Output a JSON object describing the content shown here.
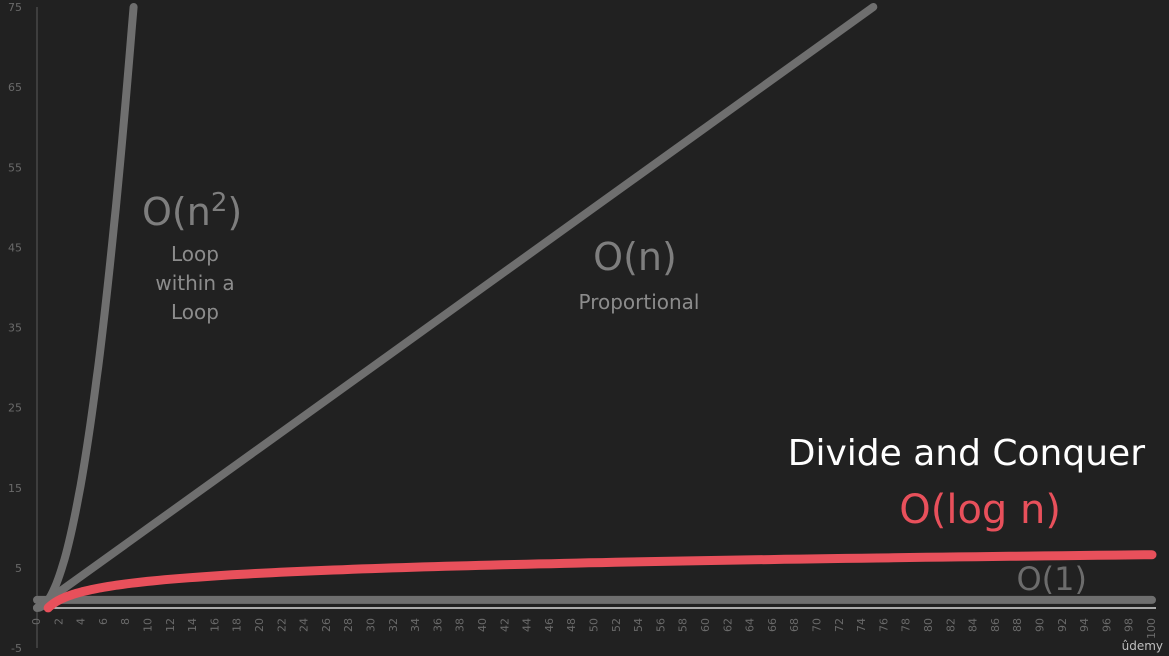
{
  "chart_data": {
    "type": "line",
    "xlim": [
      0,
      100
    ],
    "ylim": [
      -5,
      75
    ],
    "yticks": [
      -5,
      5,
      15,
      25,
      35,
      45,
      55,
      65,
      75
    ],
    "xticks": [
      0,
      2,
      4,
      6,
      8,
      10,
      12,
      14,
      16,
      18,
      20,
      22,
      24,
      26,
      28,
      30,
      32,
      34,
      36,
      38,
      40,
      42,
      44,
      46,
      48,
      50,
      52,
      54,
      56,
      58,
      60,
      62,
      64,
      66,
      68,
      70,
      72,
      74,
      76,
      78,
      80,
      82,
      84,
      86,
      88,
      90,
      92,
      94,
      96,
      98,
      100
    ],
    "series": [
      {
        "id": "o-n2",
        "x": [
          0,
          1,
          2,
          3,
          4,
          5,
          6,
          7,
          8,
          8.66
        ],
        "y": [
          0,
          1,
          4,
          9,
          16,
          25,
          36,
          49,
          64,
          75
        ],
        "color": "#6f6f6f"
      },
      {
        "id": "o-n",
        "x": [
          0,
          10,
          20,
          30,
          40,
          50,
          60,
          70,
          75
        ],
        "y": [
          0,
          10,
          20,
          30,
          40,
          50,
          60,
          70,
          75
        ],
        "color": "#6f6f6f"
      },
      {
        "id": "o-log-n",
        "x": [
          1,
          2,
          3,
          4,
          6,
          8,
          12,
          16,
          24,
          32,
          48,
          64,
          80,
          100
        ],
        "y": [
          0,
          1.0,
          1.58,
          2.0,
          2.58,
          3.0,
          3.58,
          4.0,
          4.58,
          5.0,
          5.58,
          6.0,
          6.32,
          6.64
        ],
        "color": "#e8505b"
      },
      {
        "id": "o-1",
        "x": [
          0,
          100
        ],
        "y": [
          1,
          1
        ],
        "color": "#6f6f6f"
      }
    ]
  },
  "labels": {
    "n2_main": "O(n",
    "n2_sup": "2",
    "n2_close": ")",
    "n2_desc": [
      "Loop",
      "within a",
      "Loop"
    ],
    "n_main": "O(n)",
    "n_desc": "Proportional",
    "dc_title": "Divide and Conquer",
    "log_main": "O(log n)",
    "o1_main": "O(1)",
    "brand": "ûdemy"
  }
}
